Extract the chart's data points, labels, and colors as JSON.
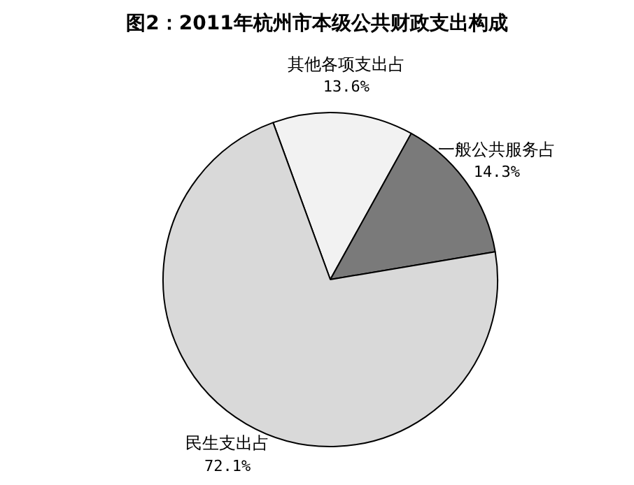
{
  "chart_data": {
    "type": "pie",
    "title": "图2：2011年杭州市本级公共财政支出构成",
    "categories": [
      "其他各项支出占",
      "一般公共服务占",
      "民生支出占"
    ],
    "values": [
      13.6,
      14.3,
      72.1
    ],
    "value_labels": [
      "13.6%",
      "14.3%",
      "72.1%"
    ],
    "colors": [
      "#f2f2f2",
      "#7a7a7a",
      "#d9d9d9"
    ],
    "legend": false
  }
}
